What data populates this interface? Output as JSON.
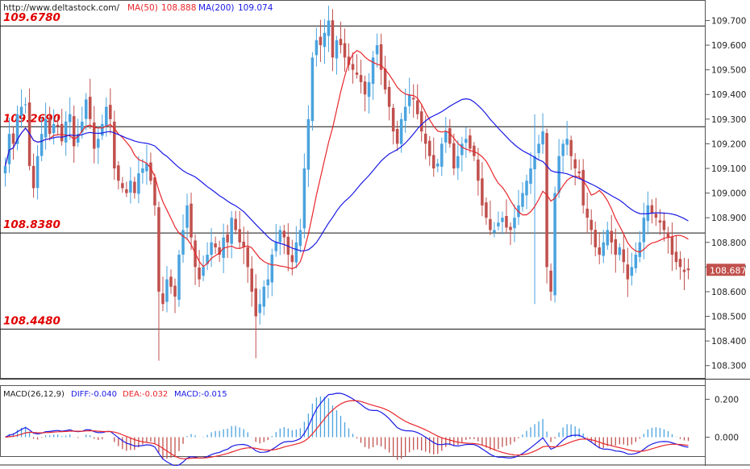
{
  "header": {
    "source": "http://www.deltastock.com/",
    "ma50_label": "MA(50)",
    "ma50_value": "108.888",
    "ma200_label": "MA(200)",
    "ma200_value": "109.074"
  },
  "levels": [
    {
      "label": "109.6780",
      "value": 109.678
    },
    {
      "label": "109.2690",
      "value": 109.269
    },
    {
      "label": "108.8380",
      "value": 108.838
    },
    {
      "label": "108.4480",
      "value": 108.448
    }
  ],
  "current_price": {
    "label": "108.687",
    "value": 108.687
  },
  "macd_header": {
    "name": "MACD(26,12,9)",
    "diff_label": "DIFF:-0.040",
    "dea_label": "DEA:-0.032",
    "macd_label": "MACD:-0.015"
  },
  "colors": {
    "up": "#4aa3df",
    "down": "#c0504d",
    "ma50": "#e8262b",
    "ma200": "#1a1ae6",
    "level_text": "#e00000",
    "price_tag": "#c0504d"
  },
  "chart_data": [
    {
      "type": "candlestick",
      "title": "",
      "ylim": [
        108.25,
        109.78
      ],
      "y_ticks": [
        108.3,
        108.4,
        108.5,
        108.6,
        108.7,
        108.8,
        108.9,
        109.0,
        109.1,
        109.2,
        109.3,
        109.4,
        109.5,
        109.6,
        109.7
      ],
      "y_tick_labels": [
        "108.300",
        "108.400",
        "108.500",
        "108.600",
        "108.700",
        "108.800",
        "108.900",
        "109.000",
        "109.100",
        "109.200",
        "109.300",
        "109.400",
        "109.500",
        "109.600",
        "109.700"
      ],
      "candle_count": 170,
      "closes": [
        109.11,
        109.24,
        109.2,
        109.32,
        109.35,
        109.36,
        109.11,
        109.02,
        109.15,
        109.24,
        109.3,
        109.24,
        109.28,
        109.27,
        109.21,
        109.29,
        109.32,
        109.19,
        109.24,
        109.29,
        109.38,
        109.3,
        109.18,
        109.22,
        109.28,
        109.35,
        109.3,
        109.1,
        109.05,
        109.02,
        109.0,
        109.05,
        109.0,
        109.08,
        109.1,
        109.12,
        109.05,
        108.95,
        108.6,
        108.55,
        108.65,
        108.62,
        108.58,
        108.75,
        108.85,
        108.95,
        108.82,
        108.7,
        108.65,
        108.7,
        108.75,
        108.8,
        108.78,
        108.75,
        108.82,
        108.8,
        108.9,
        108.85,
        108.8,
        108.78,
        108.7,
        108.6,
        108.5,
        108.55,
        108.62,
        108.65,
        108.75,
        108.8,
        108.85,
        108.82,
        108.75,
        108.72,
        108.8,
        108.85,
        109.1,
        109.3,
        109.55,
        109.62,
        109.6,
        109.65,
        109.7,
        109.55,
        109.62,
        109.6,
        109.55,
        109.52,
        109.5,
        109.48,
        109.45,
        109.4,
        109.45,
        109.55,
        109.6,
        109.5,
        109.42,
        109.35,
        109.25,
        109.2,
        109.3,
        109.35,
        109.4,
        109.38,
        109.32,
        109.25,
        109.2,
        109.15,
        109.1,
        109.12,
        109.2,
        109.25,
        109.2,
        109.1,
        109.15,
        109.2,
        109.22,
        109.18,
        109.15,
        109.05,
        108.95,
        108.9,
        108.85,
        108.85,
        108.88,
        108.9,
        108.86,
        108.85,
        108.9,
        108.95,
        109.0,
        109.05,
        109.1,
        109.15,
        109.2,
        109.25,
        108.7,
        108.6,
        109.0,
        109.15,
        109.2,
        109.22,
        109.15,
        109.1,
        109.08,
        108.95,
        108.9,
        108.85,
        108.78,
        108.75,
        108.8,
        108.85,
        108.8,
        108.75,
        108.78,
        108.72,
        108.65,
        108.7,
        108.75,
        108.8,
        108.9,
        108.95,
        108.92,
        108.9,
        108.88,
        108.85,
        108.82,
        108.75,
        108.72,
        108.7,
        108.68,
        108.687
      ],
      "series": [
        {
          "name": "MA(50)",
          "last_value": 108.888
        },
        {
          "name": "MA(200)",
          "last_value": 109.074
        }
      ]
    },
    {
      "type": "macd",
      "title": "MACD(26,12,9)",
      "ylim": [
        -0.1,
        0.27
      ],
      "y_ticks": [
        0.2,
        0.0
      ],
      "y_tick_labels": [
        "0.200",
        "0.000"
      ],
      "diff_last": -0.04,
      "dea_last": -0.032,
      "macd_last": -0.015
    }
  ]
}
